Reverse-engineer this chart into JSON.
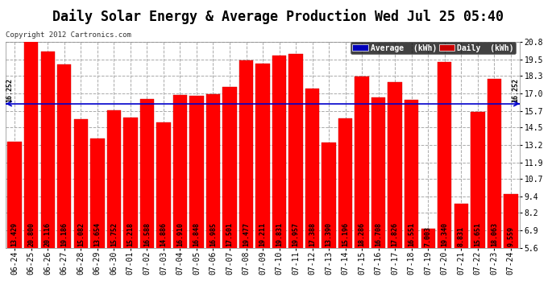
{
  "title": "Daily Solar Energy & Average Production Wed Jul 25 05:40",
  "copyright": "Copyright 2012 Cartronics.com",
  "average_label": "Average  (kWh)",
  "daily_label": "Daily  (kWh)",
  "average_value": 16.252,
  "average_line_color": "#0000cc",
  "bar_color": "#ff0000",
  "background_color": "#ffffff",
  "plot_bg_color": "#ffffff",
  "grid_color": "#aaaaaa",
  "categories": [
    "06-24",
    "06-25",
    "06-26",
    "06-27",
    "06-28",
    "06-29",
    "06-30",
    "07-01",
    "07-02",
    "07-03",
    "07-04",
    "07-05",
    "07-06",
    "07-07",
    "07-08",
    "07-09",
    "07-10",
    "07-11",
    "07-12",
    "07-13",
    "07-14",
    "07-15",
    "07-16",
    "07-17",
    "07-18",
    "07-19",
    "07-20",
    "07-21",
    "07-22",
    "07-23",
    "07-24"
  ],
  "values": [
    13.429,
    20.8,
    20.116,
    19.186,
    15.082,
    13.654,
    15.752,
    15.218,
    16.588,
    14.886,
    16.91,
    16.848,
    16.985,
    17.501,
    19.477,
    19.211,
    19.831,
    19.957,
    17.388,
    13.39,
    15.196,
    18.286,
    16.708,
    17.826,
    16.551,
    7.003,
    19.34,
    8.831,
    15.651,
    18.063,
    9.559
  ],
  "ylim": [
    5.6,
    20.8
  ],
  "yticks": [
    5.6,
    6.9,
    8.2,
    9.4,
    10.7,
    11.9,
    13.2,
    14.5,
    15.7,
    17.0,
    18.3,
    19.5,
    20.8
  ],
  "title_fontsize": 12,
  "tick_fontsize": 7,
  "value_fontsize": 6,
  "legend_bg_average": "#0000bb",
  "legend_bg_daily": "#cc0000",
  "avg_label_text": "16.252"
}
